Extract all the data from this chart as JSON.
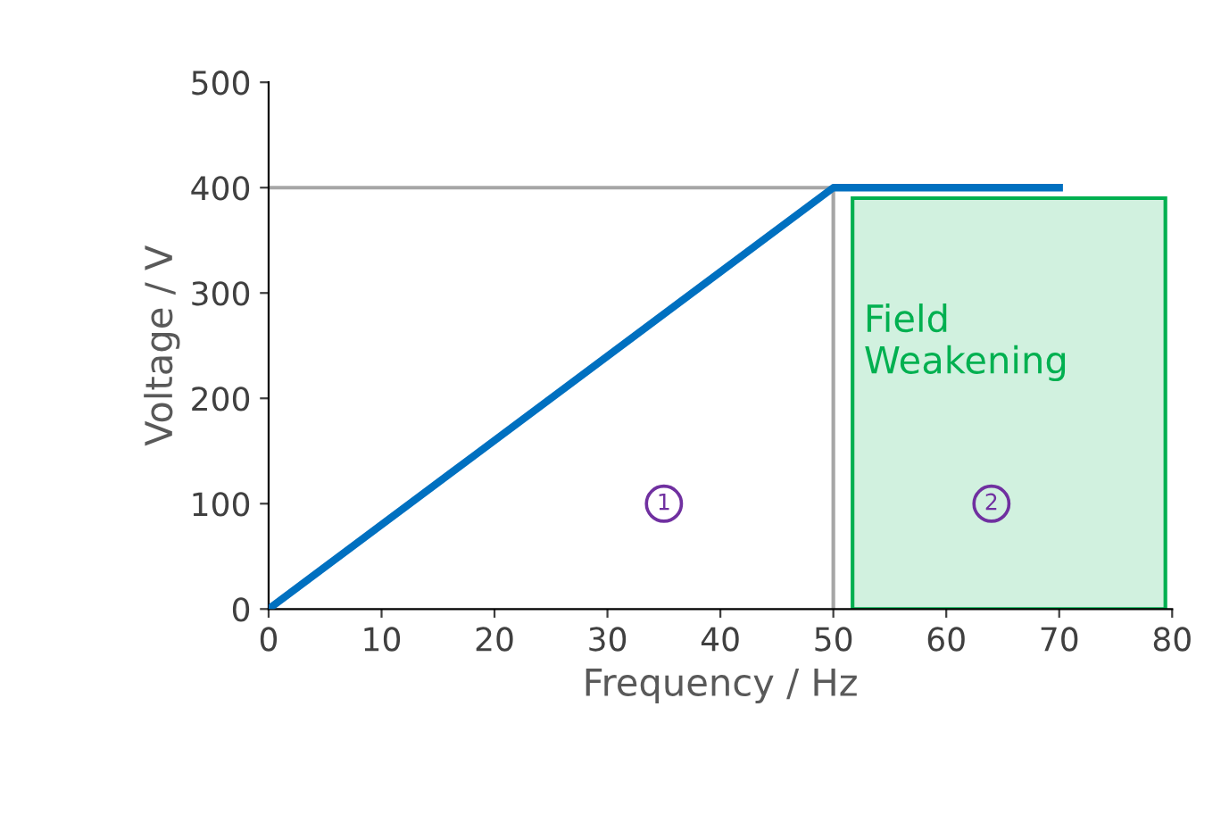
{
  "chart_data": {
    "type": "line",
    "xlabel": "Frequency / Hz",
    "ylabel": "Voltage / V",
    "x": [
      0,
      50,
      70
    ],
    "series": [
      {
        "color": "#0070c0",
        "values": [
          0,
          400,
          400
        ]
      }
    ],
    "xlim": [
      0,
      80
    ],
    "xticks": [
      0,
      10,
      20,
      30,
      40,
      50,
      60,
      70,
      80
    ],
    "ylim": [
      0,
      500
    ],
    "yticks": [
      0,
      100,
      200,
      300,
      400,
      500
    ],
    "ref_lines": [
      {
        "axis": "y",
        "value": 400,
        "color": "#a6a6a6"
      },
      {
        "axis": "x",
        "value": 50,
        "color": "#a6a6a6"
      }
    ],
    "bands": [
      {
        "axis": "x",
        "from": 51.7,
        "to": 79.4,
        "label": "Field\nWeakening",
        "color": "#00b050"
      }
    ],
    "annotations": [
      {
        "text": "1",
        "x": 35,
        "y": 100
      },
      {
        "text": "2",
        "x": 64,
        "y": 100
      }
    ],
    "grid": false,
    "legend": false,
    "marker": "none",
    "line_style": "solid"
  }
}
